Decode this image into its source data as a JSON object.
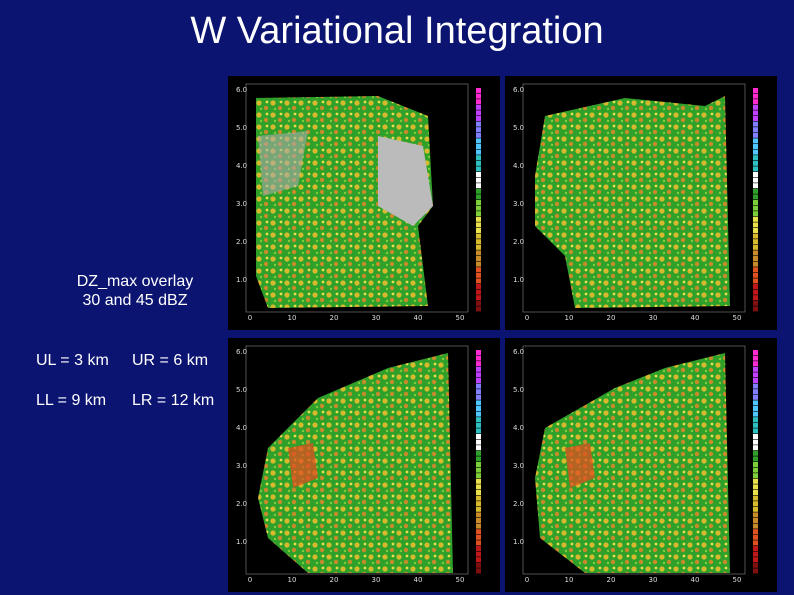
{
  "title": "W Variational Integration",
  "overlay_note": [
    "DZ_max overlay",
    "30 and 45 dBZ"
  ],
  "panel_key": [
    [
      "UL = 3 km",
      "UR = 6 km"
    ],
    [
      "LL = 9 km",
      "LR = 12 km"
    ]
  ],
  "panel_axis": {
    "x_ticks": [
      "0",
      "10",
      "20",
      "30",
      "40",
      "50"
    ],
    "y_ticks": [
      "6.0",
      "5.0",
      "4.0",
      "3.0",
      "2.0",
      "1.0"
    ]
  }
}
